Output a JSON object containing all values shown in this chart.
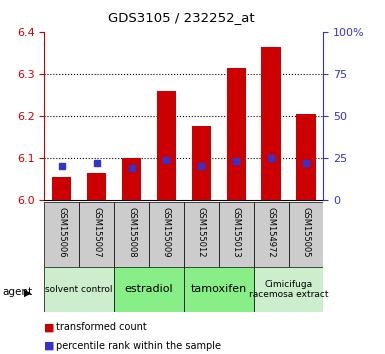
{
  "title": "GDS3105 / 232252_at",
  "samples": [
    "GSM155006",
    "GSM155007",
    "GSM155008",
    "GSM155009",
    "GSM155012",
    "GSM155013",
    "GSM154972",
    "GSM155005"
  ],
  "transformed_counts": [
    6.055,
    6.065,
    6.1,
    6.26,
    6.175,
    6.315,
    6.365,
    6.205
  ],
  "percentile_ranks": [
    20,
    22,
    19,
    24,
    20,
    23,
    25,
    22
  ],
  "ylim": [
    6.0,
    6.4
  ],
  "y2lim": [
    0,
    100
  ],
  "yticks": [
    6.0,
    6.1,
    6.2,
    6.3,
    6.4
  ],
  "y2ticks": [
    0,
    25,
    50,
    75,
    100
  ],
  "y2ticklabels": [
    "0",
    "25",
    "50",
    "75",
    "100%"
  ],
  "bar_color": "#cc0000",
  "percentile_color": "#3333cc",
  "bar_width": 0.55,
  "agents": [
    {
      "label": "solvent control",
      "start": 0,
      "end": 1,
      "color": "#cceecc",
      "fontsize": 6.5
    },
    {
      "label": "estradiol",
      "start": 2,
      "end": 3,
      "color": "#88ee88",
      "fontsize": 8
    },
    {
      "label": "tamoxifen",
      "start": 4,
      "end": 5,
      "color": "#88ee88",
      "fontsize": 8
    },
    {
      "label": "Cimicifuga\nracemosa extract",
      "start": 6,
      "end": 7,
      "color": "#cceecc",
      "fontsize": 6.5
    }
  ],
  "agent_label": "agent",
  "legend_transformed": "transformed count",
  "legend_percentile": "percentile rank within the sample",
  "xlabel_bg": "#cccccc",
  "spine_color_left": "#cc0000",
  "spine_color_right": "#3333cc"
}
